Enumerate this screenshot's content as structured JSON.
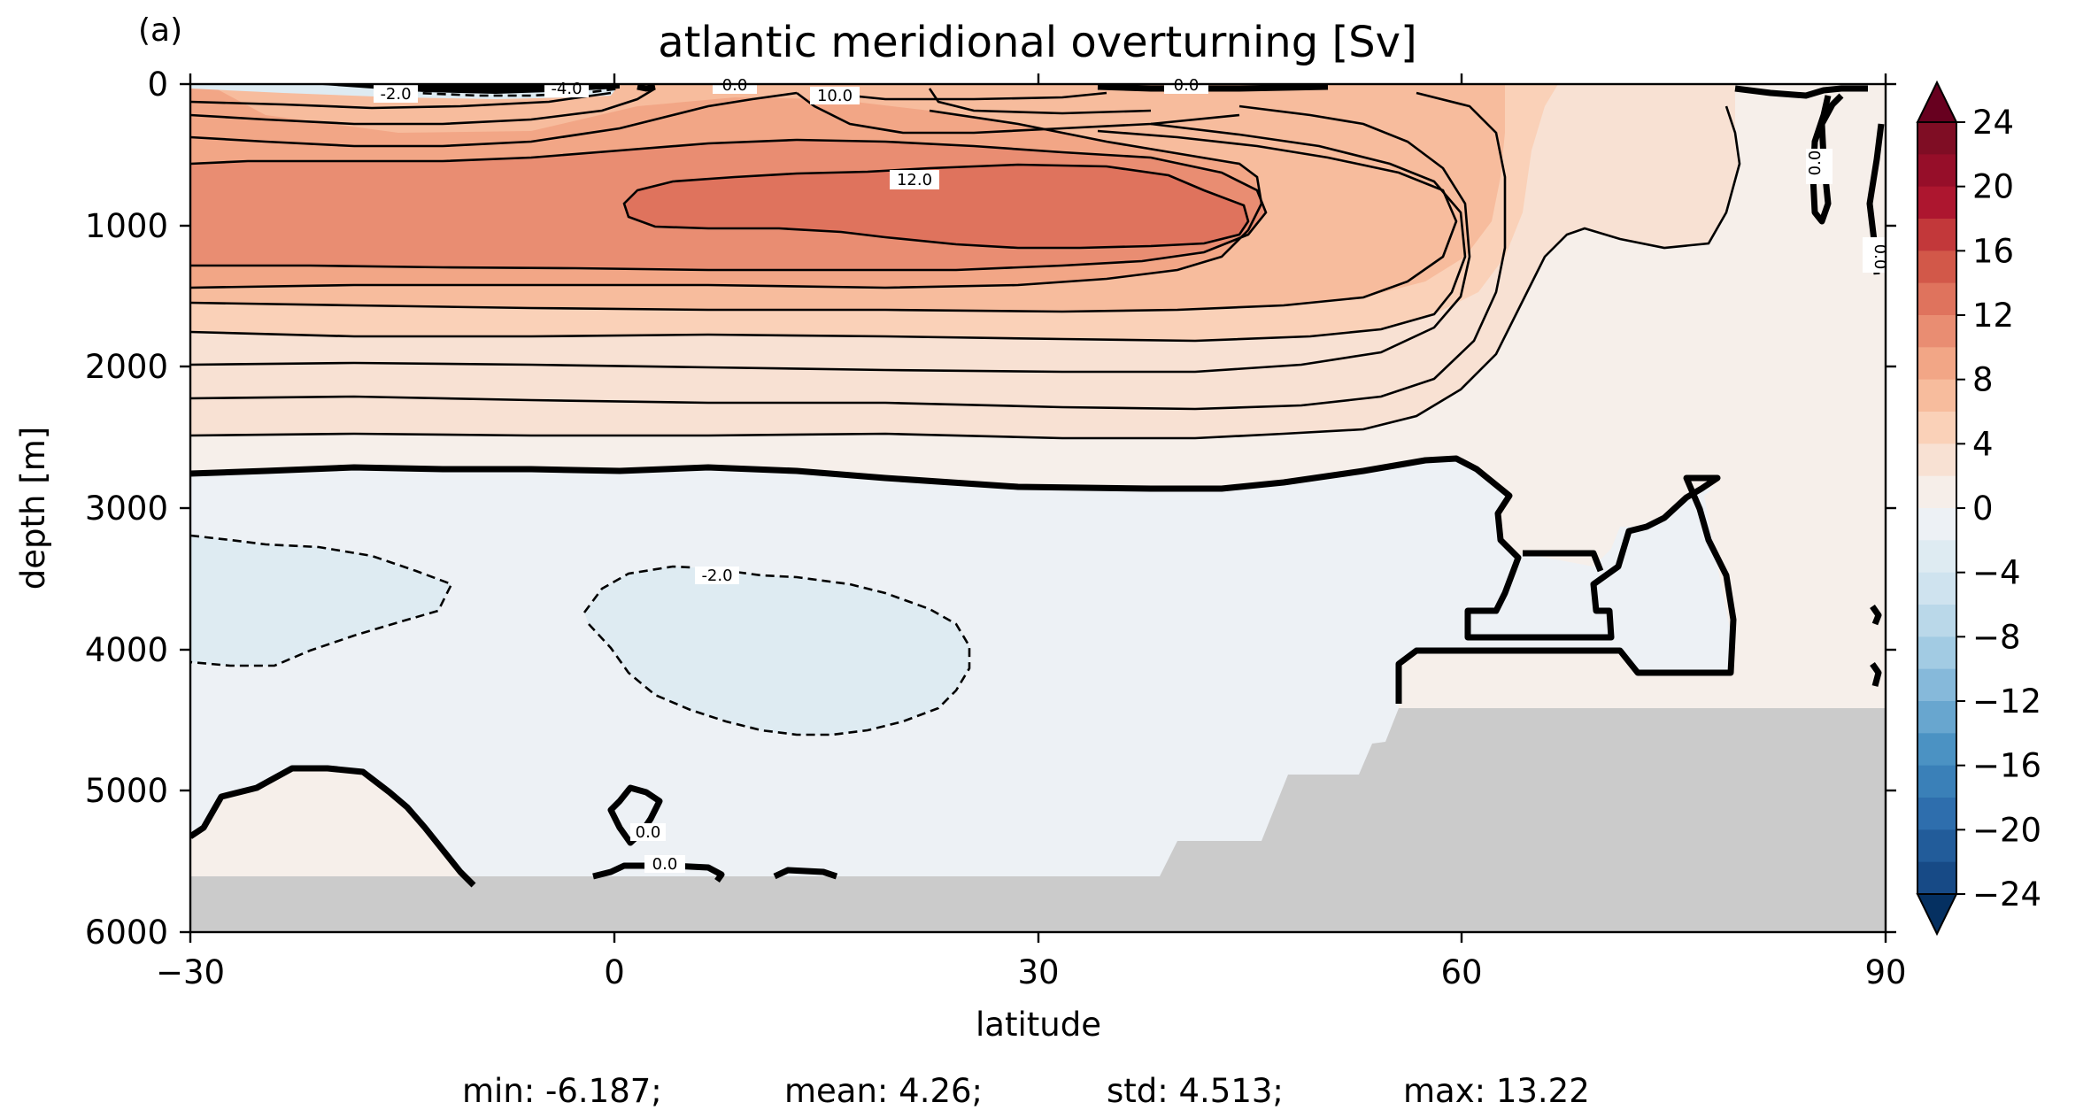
{
  "figure": {
    "panel_label": "(a)",
    "title": "atlantic meridional overturning [Sv]",
    "xlabel": "latitude",
    "ylabel": "depth [m]",
    "stats": {
      "min": "min: -6.187;",
      "mean": "mean: 4.26;",
      "std": "std: 4.513;",
      "max": "max: 13.22"
    }
  },
  "chart_data": {
    "type": "contour",
    "title": "atlantic meridional overturning [Sv]",
    "xlabel": "latitude",
    "ylabel": "depth [m]",
    "xlim": [
      -30,
      90
    ],
    "ylim": [
      6000,
      0
    ],
    "y_inverted": true,
    "x_ticks": [
      -30,
      0,
      30,
      60,
      90
    ],
    "x_tick_labels": [
      "−30",
      "0",
      "30",
      "60",
      "90"
    ],
    "y_ticks": [
      0,
      1000,
      2000,
      3000,
      4000,
      5000,
      6000
    ],
    "y_tick_labels": [
      "0",
      "1000",
      "2000",
      "3000",
      "4000",
      "5000",
      "6000"
    ],
    "colormap": "RdBu_r",
    "colorbar": {
      "range": [
        -24,
        24
      ],
      "extend": "both",
      "ticks": [
        24,
        20,
        16,
        12,
        8,
        4,
        0,
        -4,
        -8,
        -12,
        -16,
        -20,
        -24
      ],
      "tick_labels": [
        "24",
        "20",
        "16",
        "12",
        "8",
        "4",
        "0",
        "−4",
        "−8",
        "−12",
        "−16",
        "−20",
        "−24"
      ],
      "colors_top_to_bottom": [
        "#7f0d24",
        "#960e29",
        "#ad162f",
        "#c2383a",
        "#d25849",
        "#df735d",
        "#e98d72",
        "#f2a686",
        "#f7bc9d",
        "#fad1b8",
        "#f8e1d3",
        "#f6eee9",
        "#edf1f5",
        "#deebf2",
        "#cfe3ef",
        "#bad8e9",
        "#a2cbe3",
        "#86b9da",
        "#68a6cf",
        "#4b92c3",
        "#3a80b8",
        "#2e6ead",
        "#225c9a",
        "#174a86"
      ],
      "over_color": "#67001f",
      "under_color": "#053061"
    },
    "contour_labels": [
      "-2.0",
      "-4.0",
      "0.0",
      "10.0",
      "0.0",
      "12.0",
      "-2.0",
      "0.0",
      "0.0",
      "0.0",
      "0.0"
    ],
    "stats": {
      "min": -6.187,
      "mean": 4.26,
      "std": 4.513,
      "max": 13.22
    },
    "land_mask_color": "#cbcbcb",
    "features": {
      "max_cell_core": {
        "lat_range": [
          3,
          45
        ],
        "depth_range": [
          700,
          1200
        ],
        "value": 12.0
      },
      "zero_line_depth_m": 2800,
      "negative_cells": [
        {
          "lat_range": [
            -30,
            -12
          ],
          "depth_range": [
            3200,
            4100
          ],
          "value": -2.0
        },
        {
          "lat_range": [
            -2,
            25
          ],
          "depth_range": [
            3500,
            4600
          ],
          "value": -2.0
        }
      ]
    }
  }
}
